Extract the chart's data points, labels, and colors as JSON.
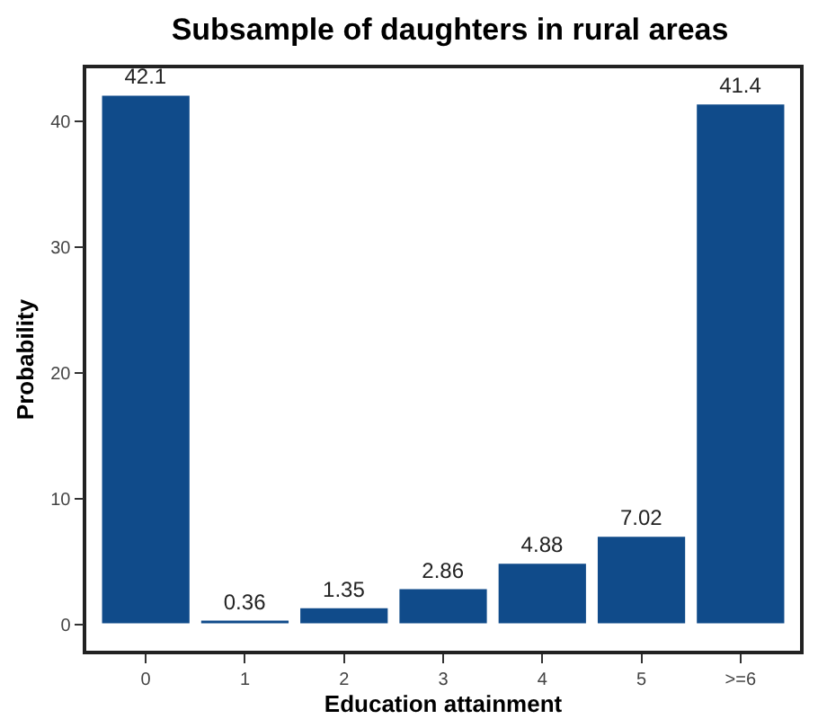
{
  "chart_data": {
    "type": "bar",
    "title": "Subsample of daughters in rural areas",
    "xlabel": "Education attainment",
    "ylabel": "Probability",
    "categories": [
      "0",
      "1",
      "2",
      "3",
      "4",
      "5",
      ">=6"
    ],
    "values": [
      42.1,
      0.36,
      1.35,
      2.86,
      4.88,
      7.02,
      41.4
    ],
    "color": "#104b8a",
    "data_labels": true,
    "ylim": [
      -2.1,
      44.2
    ],
    "yticks": [
      0,
      10,
      20,
      30,
      40
    ]
  }
}
